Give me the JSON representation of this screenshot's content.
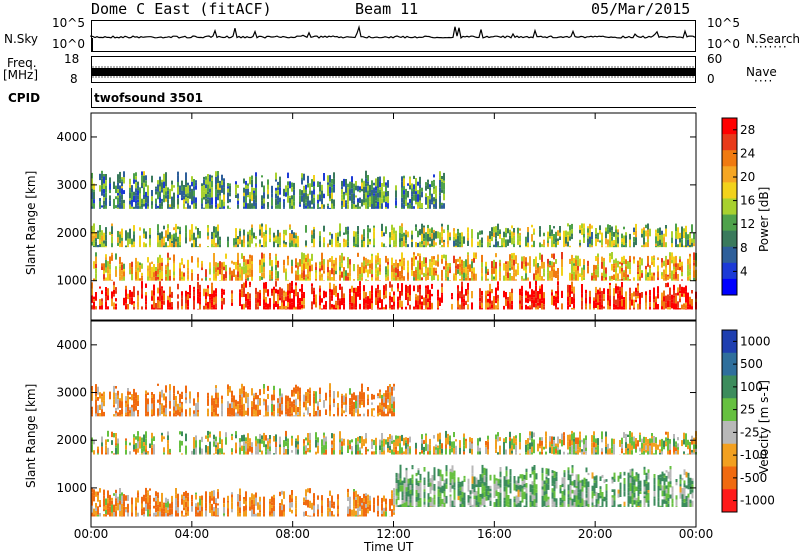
{
  "header": {
    "station": "Dome C East (fitACF)",
    "beam": "Beam 11",
    "date": "05/Mar/2015"
  },
  "strips": {
    "nsky_label": "N.Sky",
    "nsky_ticks": [
      "10^5",
      "10^0"
    ],
    "nsearch_label": "N.Search",
    "nsearch_ticks": [
      "10^5",
      "10^0"
    ],
    "freq_label_1": "Freq.",
    "freq_label_2": "[MHz]",
    "freq_ticks": [
      "18",
      "8"
    ],
    "nave_label": "Nave",
    "nave_ticks": [
      "60",
      "0"
    ],
    "cpid_label": "CPID",
    "cpid_value": "twofsound 3501"
  },
  "axes": {
    "ylabel": "Slant Range [km]",
    "xlabel": "Time UT",
    "x_ticks": [
      "00:00",
      "04:00",
      "08:00",
      "12:00",
      "16:00",
      "20:00",
      "00:00"
    ],
    "y_ticks": [
      "4000",
      "3000",
      "2000",
      "1000"
    ]
  },
  "colorbars": {
    "power_label": "Power [dB]",
    "power_ticks": [
      "28",
      "24",
      "20",
      "16",
      "12",
      "8",
      "4"
    ],
    "power_colors": [
      "#ff0000",
      "#e83a1a",
      "#f07a10",
      "#f5a623",
      "#f2d21b",
      "#a8d12f",
      "#4fa24b",
      "#3a7a5c",
      "#2e5f9a",
      "#1c3ad6",
      "#0000ff"
    ],
    "velocity_label": "Velocity [m s-1]",
    "velocity_ticks": [
      "1000",
      "500",
      "100",
      "25",
      "-25",
      "-100",
      "-500",
      "-1000"
    ],
    "velocity_colors": [
      "#1f3fb0",
      "#2f6f9c",
      "#3c8c5c",
      "#66c040",
      "#b8b8b8",
      "#f2a020",
      "#f06a10",
      "#ff1a1a"
    ]
  },
  "chart_data": [
    {
      "type": "heatmap",
      "title": "Power",
      "xlabel": "Time UT",
      "ylabel": "Slant Range [km]",
      "xlim": [
        "00:00",
        "24:00"
      ],
      "ylim": [
        180,
        4500
      ],
      "colorbar": "Power [dB]",
      "colorbar_range": [
        0,
        30
      ],
      "bands": [
        {
          "range_km": [
            400,
            1000
          ],
          "power_db": 28,
          "time": [
            "00:00",
            "24:00"
          ]
        },
        {
          "range_km": [
            1000,
            1600
          ],
          "power_db": 20,
          "time": [
            "00:00",
            "24:00"
          ]
        },
        {
          "range_km": [
            1700,
            2200
          ],
          "power_db": 14,
          "time": [
            "00:00",
            "24:00"
          ]
        },
        {
          "range_km": [
            2500,
            3300
          ],
          "power_db": 10,
          "time": [
            "00:00",
            "14:00"
          ]
        }
      ]
    },
    {
      "type": "heatmap",
      "title": "Velocity",
      "xlabel": "Time UT",
      "ylabel": "Slant Range [km]",
      "xlim": [
        "00:00",
        "24:00"
      ],
      "ylim": [
        180,
        4500
      ],
      "colorbar": "Velocity [m s-1]",
      "colorbar_range": [
        -1000,
        1000
      ],
      "bands": [
        {
          "range_km": [
            400,
            1000
          ],
          "velocity": -100,
          "time": [
            "00:00",
            "12:00"
          ]
        },
        {
          "range_km": [
            600,
            1500
          ],
          "velocity": 100,
          "time": [
            "12:00",
            "24:00"
          ]
        },
        {
          "range_km": [
            1700,
            2200
          ],
          "velocity": 0,
          "time": [
            "00:00",
            "24:00"
          ]
        },
        {
          "range_km": [
            2500,
            3200
          ],
          "velocity": -100,
          "time": [
            "00:00",
            "12:00"
          ]
        }
      ]
    }
  ]
}
